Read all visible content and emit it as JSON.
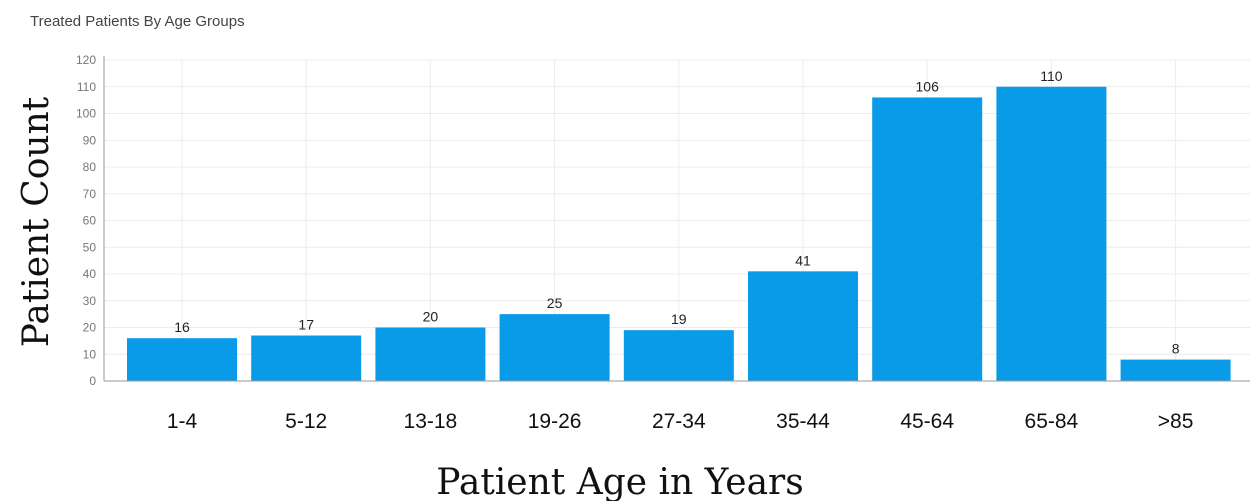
{
  "chart_data": {
    "type": "bar",
    "title": "Treated Patients By Age Groups",
    "xlabel": "Patient Age in Years",
    "ylabel": "Patient Count",
    "categories": [
      "1-4",
      "5-12",
      "13-18",
      "19-26",
      "27-34",
      "35-44",
      "45-64",
      "65-84",
      ">85"
    ],
    "values": [
      16,
      17,
      20,
      25,
      19,
      41,
      106,
      110,
      8
    ],
    "ylim": [
      0,
      120
    ],
    "yticks": [
      0,
      10,
      20,
      30,
      40,
      50,
      60,
      70,
      80,
      90,
      100,
      110,
      120
    ],
    "grid": true,
    "bar_color": "#0a9be8",
    "data_labels": true
  }
}
